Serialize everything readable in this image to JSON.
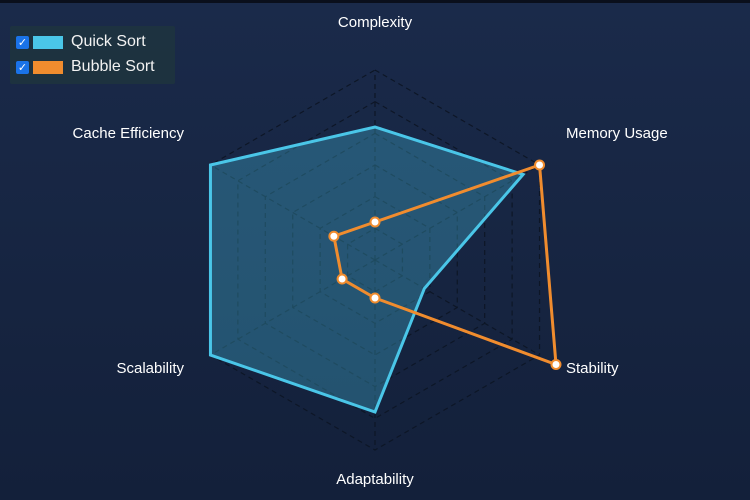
{
  "chart_data": {
    "type": "radar",
    "axes": [
      "Complexity",
      "Memory Usage",
      "Stability",
      "Adaptability",
      "Scalability",
      "Cache Efficiency"
    ],
    "range": [
      0,
      10
    ],
    "grid": true,
    "legend_position": "top-left",
    "series": [
      {
        "name": "Quick Sort",
        "values": [
          7,
          9,
          3,
          8,
          10,
          10
        ],
        "color": "#4ac6e8"
      },
      {
        "name": "Bubble Sort",
        "values": [
          2,
          10,
          11,
          2,
          2,
          2.5
        ],
        "color": "#f08c2e"
      }
    ]
  },
  "legend": {
    "items": [
      {
        "label": "Quick Sort",
        "checked": true,
        "color": "#4ac6e8"
      },
      {
        "label": "Bubble Sort",
        "checked": true,
        "color": "#f08c2e"
      }
    ]
  }
}
